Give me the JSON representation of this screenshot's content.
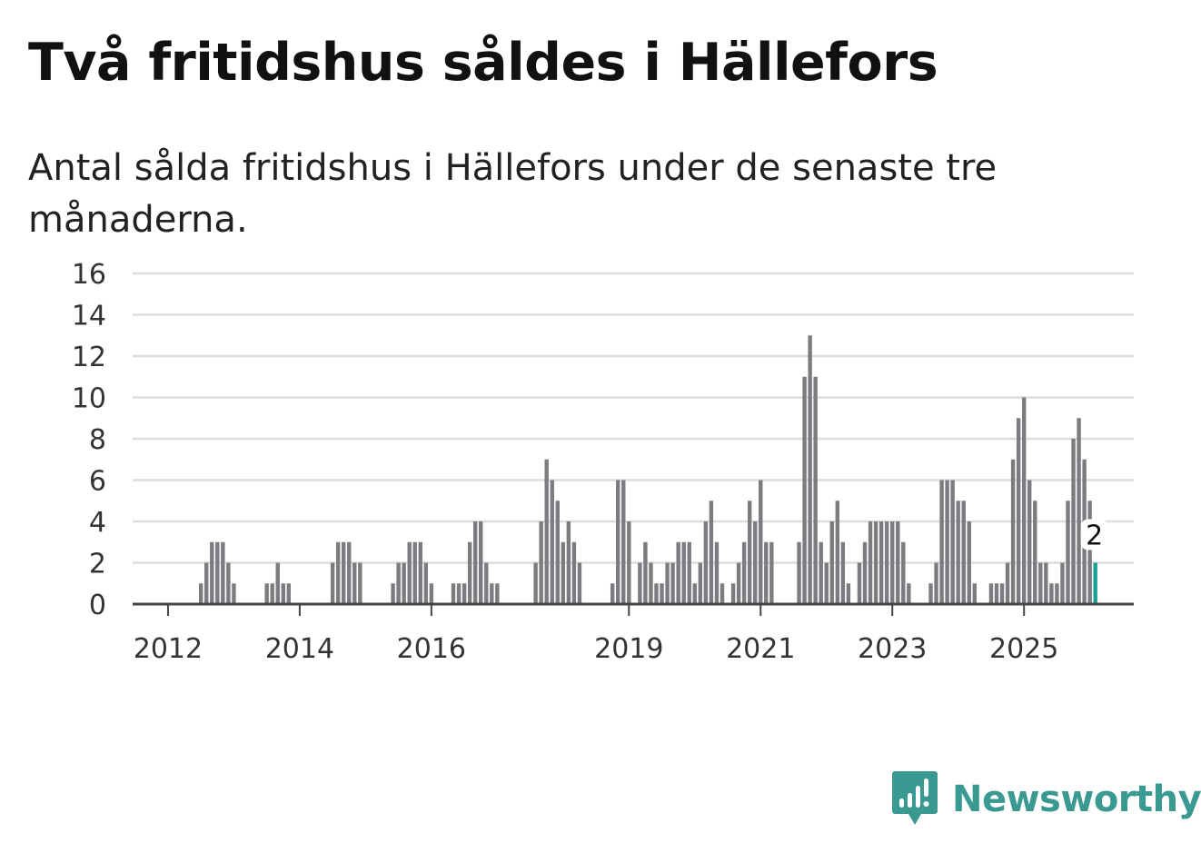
{
  "header": {
    "title": "Två fritidshus såldes i Hällefors",
    "subtitle": "Antal sålda fritidshus i Hällefors under de senaste tre månaderna."
  },
  "chart_data": {
    "type": "bar",
    "title": "Två fritidshus såldes i Hällefors",
    "subtitle": "Antal sålda fritidshus i Hällefors under de senaste tre månaderna.",
    "xlabel": "",
    "ylabel": "",
    "ylim": [
      0,
      16
    ],
    "yticks": [
      "0",
      "2",
      "4",
      "6",
      "8",
      "10",
      "12",
      "14",
      "16"
    ],
    "xticks": [
      {
        "label": "2012",
        "index": 6
      },
      {
        "label": "2014",
        "index": 30
      },
      {
        "label": "2016",
        "index": 54
      },
      {
        "label": "2019",
        "index": 90
      },
      {
        "label": "2021",
        "index": 114
      },
      {
        "label": "2023",
        "index": 138
      },
      {
        "label": "2025",
        "index": 162
      }
    ],
    "grid": true,
    "values": [
      0,
      0,
      0,
      0,
      0,
      0,
      0,
      0,
      0,
      0,
      0,
      0,
      1,
      2,
      3,
      3,
      3,
      2,
      1,
      0,
      0,
      0,
      0,
      0,
      1,
      1,
      2,
      1,
      1,
      0,
      0,
      0,
      0,
      0,
      0,
      0,
      2,
      3,
      3,
      3,
      2,
      2,
      0,
      0,
      0,
      0,
      0,
      1,
      2,
      2,
      3,
      3,
      3,
      2,
      1,
      0,
      0,
      0,
      1,
      1,
      1,
      3,
      4,
      4,
      2,
      1,
      1,
      0,
      0,
      0,
      0,
      0,
      0,
      2,
      4,
      7,
      6,
      5,
      3,
      4,
      3,
      2,
      0,
      0,
      0,
      0,
      0,
      1,
      6,
      6,
      4,
      0,
      2,
      3,
      2,
      1,
      1,
      2,
      2,
      3,
      3,
      3,
      1,
      2,
      4,
      5,
      3,
      1,
      0,
      1,
      2,
      3,
      5,
      4,
      6,
      3,
      3,
      0,
      0,
      0,
      0,
      3,
      11,
      13,
      11,
      3,
      2,
      4,
      5,
      3,
      1,
      0,
      2,
      3,
      4,
      4,
      4,
      4,
      4,
      4,
      3,
      1,
      0,
      0,
      0,
      1,
      2,
      6,
      6,
      6,
      5,
      5,
      4,
      1,
      0,
      0,
      1,
      1,
      1,
      2,
      7,
      9,
      10,
      6,
      5,
      2,
      2,
      1,
      1,
      2,
      5,
      8,
      9,
      7,
      5,
      2
    ],
    "highlight": {
      "label": "2",
      "color": "#1a9e94"
    },
    "bar_color": "#7c7b80"
  },
  "branding": {
    "logo_text": "Newsworthy",
    "logo_icon": "bar-chart-speech-bubble-icon",
    "accent": "#3a9a92"
  }
}
